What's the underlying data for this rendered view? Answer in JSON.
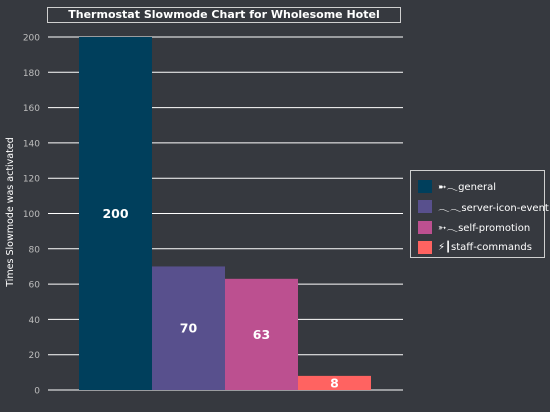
{
  "chart_data": {
    "type": "bar",
    "title": "Thermostat Slowmode Chart for Wholesome Hotel",
    "xlabel": "",
    "ylabel": "Times Slowmode was activated",
    "ylim": [
      0,
      200
    ],
    "yticks": [
      0,
      20,
      40,
      60,
      80,
      100,
      120,
      140,
      160,
      180,
      200
    ],
    "grid": true,
    "legend_position": "right",
    "categories": [
      "➼𓂃general",
      "𓂃𓂃server-icon-event",
      "➳𓂃self-promotion",
      "⚡┃staff-commands"
    ],
    "values": [
      200,
      70,
      63,
      8
    ],
    "colors": [
      "#003f5c",
      "#58508d",
      "#bc5090",
      "#ff6361"
    ]
  }
}
